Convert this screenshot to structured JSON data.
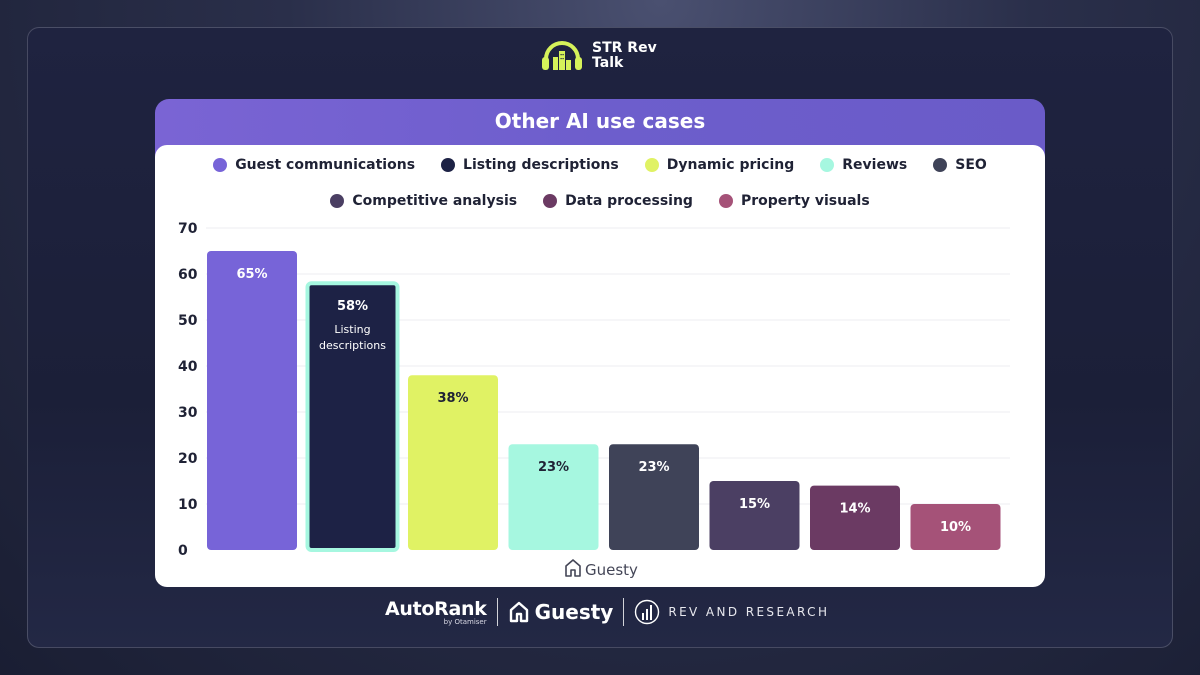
{
  "brand": {
    "line1": "STR Rev",
    "line2": "Talk",
    "icon": "headphones-city-icon"
  },
  "card": {
    "title": "Other AI use cases"
  },
  "colors": {
    "Guest communications": "#7764d8",
    "Listing descriptions": "#1d2245",
    "Dynamic pricing": "#e0f264",
    "Reviews": "#a6f7e0",
    "SEO": "#3f4358",
    "Competitive analysis": "#4b3f63",
    "Data processing": "#6b3a63",
    "Property visuals": "#a55278",
    "highlight_border": "#a6f7e0"
  },
  "legend_rows": [
    [
      "Guest communications",
      "Listing descriptions",
      "Dynamic pricing",
      "Reviews",
      "SEO"
    ],
    [
      "Competitive analysis",
      "Data processing",
      "Property visuals"
    ]
  ],
  "chart_data": {
    "type": "bar",
    "categories": [
      "Guest communications",
      "Listing descriptions",
      "Dynamic pricing",
      "Reviews",
      "SEO",
      "Competitive analysis",
      "Data processing",
      "Property visuals"
    ],
    "values": [
      65,
      58,
      38,
      23,
      23,
      15,
      14,
      10
    ],
    "labels": [
      "65%",
      "58%",
      "38%",
      "23%",
      "23%",
      "15%",
      "14%",
      "10%"
    ],
    "highlighted": {
      "category": "Listing descriptions",
      "annotation": "Listing descriptions"
    },
    "yticks": [
      0,
      10,
      20,
      30,
      40,
      50,
      60,
      70
    ],
    "ylim": [
      0,
      70
    ],
    "grid": true,
    "legend": "top-center",
    "watermark": "Guesty",
    "title": "Other AI use cases"
  },
  "footer": {
    "autorank": "AutoRank",
    "autorank_sub": "by Otamiser",
    "guesty": "Guesty",
    "rev": "REV AND RESEARCH"
  }
}
